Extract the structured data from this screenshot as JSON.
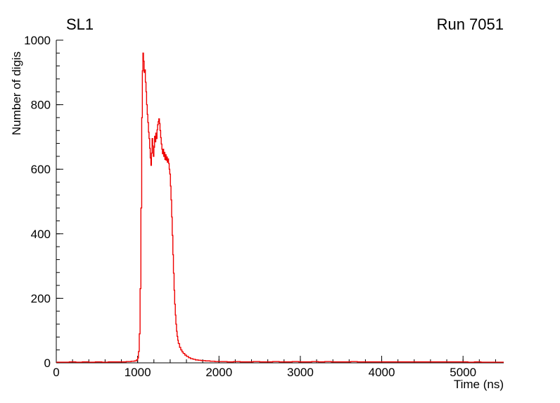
{
  "header": {
    "title_left": "SL1",
    "title_right": "Run 7051"
  },
  "chart_data": {
    "type": "line",
    "title": "SL1",
    "annotation": "Run 7051",
    "xlabel": "Time (ns)",
    "ylabel": "Number of digis",
    "xlim": [
      0,
      5500
    ],
    "ylim": [
      0,
      1000
    ],
    "x_ticks": [
      0,
      1000,
      2000,
      3000,
      4000,
      5000
    ],
    "y_ticks": [
      0,
      200,
      400,
      600,
      800,
      1000
    ],
    "x_minor_step": 200,
    "y_minor_step": 40,
    "grid": false,
    "legend": "none",
    "line_color": "#ee0000",
    "axis_color": "#000000",
    "series": [
      {
        "name": "digis-vs-time",
        "points": [
          [
            0,
            2
          ],
          [
            80,
            2
          ],
          [
            160,
            3
          ],
          [
            240,
            2
          ],
          [
            320,
            3
          ],
          [
            400,
            2
          ],
          [
            480,
            3
          ],
          [
            560,
            2
          ],
          [
            640,
            3
          ],
          [
            720,
            3
          ],
          [
            800,
            3
          ],
          [
            860,
            4
          ],
          [
            920,
            5
          ],
          [
            960,
            6
          ],
          [
            985,
            9
          ],
          [
            1000,
            15
          ],
          [
            1010,
            35
          ],
          [
            1020,
            90
          ],
          [
            1030,
            230
          ],
          [
            1040,
            480
          ],
          [
            1050,
            760
          ],
          [
            1058,
            905
          ],
          [
            1065,
            960
          ],
          [
            1072,
            935
          ],
          [
            1080,
            900
          ],
          [
            1088,
            908
          ],
          [
            1095,
            870
          ],
          [
            1103,
            840
          ],
          [
            1110,
            800
          ],
          [
            1118,
            770
          ],
          [
            1125,
            745
          ],
          [
            1133,
            715
          ],
          [
            1140,
            695
          ],
          [
            1148,
            665
          ],
          [
            1155,
            635
          ],
          [
            1163,
            612
          ],
          [
            1170,
            650
          ],
          [
            1178,
            695
          ],
          [
            1185,
            672
          ],
          [
            1193,
            640
          ],
          [
            1200,
            668
          ],
          [
            1208,
            702
          ],
          [
            1215,
            685
          ],
          [
            1223,
            712
          ],
          [
            1230,
            695
          ],
          [
            1238,
            722
          ],
          [
            1245,
            738
          ],
          [
            1253,
            748
          ],
          [
            1260,
            756
          ],
          [
            1268,
            742
          ],
          [
            1275,
            720
          ],
          [
            1283,
            698
          ],
          [
            1290,
            678
          ],
          [
            1298,
            662
          ],
          [
            1305,
            648
          ],
          [
            1313,
            662
          ],
          [
            1320,
            640
          ],
          [
            1328,
            652
          ],
          [
            1335,
            630
          ],
          [
            1343,
            645
          ],
          [
            1350,
            628
          ],
          [
            1358,
            638
          ],
          [
            1365,
            622
          ],
          [
            1373,
            632
          ],
          [
            1380,
            618
          ],
          [
            1388,
            600
          ],
          [
            1395,
            585
          ],
          [
            1403,
            548
          ],
          [
            1410,
            505
          ],
          [
            1418,
            452
          ],
          [
            1425,
            395
          ],
          [
            1433,
            335
          ],
          [
            1440,
            278
          ],
          [
            1448,
            225
          ],
          [
            1455,
            182
          ],
          [
            1463,
            148
          ],
          [
            1470,
            120
          ],
          [
            1478,
            98
          ],
          [
            1485,
            82
          ],
          [
            1493,
            70
          ],
          [
            1500,
            60
          ],
          [
            1515,
            48
          ],
          [
            1530,
            40
          ],
          [
            1545,
            34
          ],
          [
            1560,
            29
          ],
          [
            1580,
            24
          ],
          [
            1600,
            20
          ],
          [
            1625,
            16
          ],
          [
            1650,
            13
          ],
          [
            1680,
            11
          ],
          [
            1710,
            9
          ],
          [
            1745,
            8
          ],
          [
            1780,
            7
          ],
          [
            1830,
            6
          ],
          [
            1890,
            5
          ],
          [
            1950,
            4
          ],
          [
            2020,
            4
          ],
          [
            2100,
            3
          ],
          [
            2180,
            4
          ],
          [
            2260,
            3
          ],
          [
            2340,
            3
          ],
          [
            2420,
            4
          ],
          [
            2500,
            3
          ],
          [
            2580,
            3
          ],
          [
            2660,
            4
          ],
          [
            2740,
            3
          ],
          [
            2820,
            3
          ],
          [
            2900,
            4
          ],
          [
            2980,
            3
          ],
          [
            3060,
            3
          ],
          [
            3140,
            4
          ],
          [
            3220,
            3
          ],
          [
            3300,
            4
          ],
          [
            3380,
            3
          ],
          [
            3460,
            3
          ],
          [
            3540,
            3
          ],
          [
            3620,
            4
          ],
          [
            3700,
            3
          ],
          [
            3780,
            3
          ],
          [
            3860,
            3
          ],
          [
            3940,
            3
          ],
          [
            4020,
            3
          ],
          [
            4100,
            3
          ],
          [
            4180,
            3
          ],
          [
            4260,
            3
          ],
          [
            4340,
            3
          ],
          [
            4420,
            3
          ],
          [
            4500,
            3
          ],
          [
            4580,
            3
          ],
          [
            4660,
            3
          ],
          [
            4740,
            3
          ],
          [
            4820,
            3
          ],
          [
            4900,
            3
          ],
          [
            4980,
            3
          ],
          [
            5060,
            2
          ],
          [
            5140,
            3
          ],
          [
            5220,
            2
          ],
          [
            5300,
            2
          ],
          [
            5380,
            2
          ],
          [
            5460,
            2
          ],
          [
            5500,
            2
          ]
        ]
      }
    ]
  }
}
